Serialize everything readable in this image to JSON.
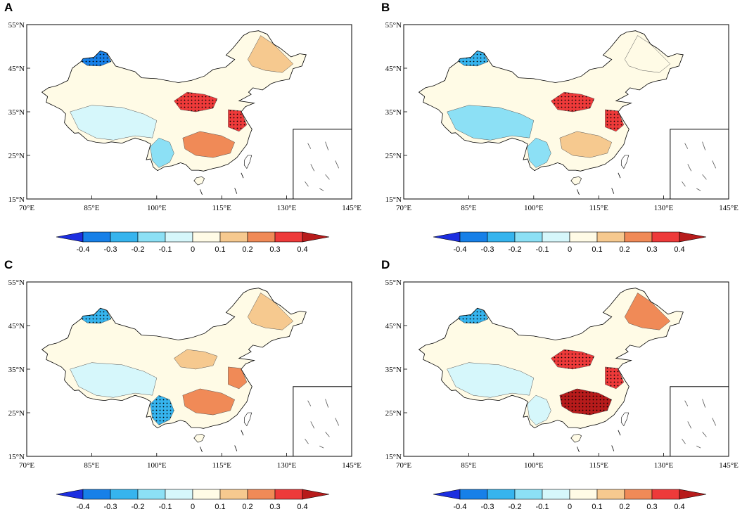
{
  "colors": {
    "bins": [
      "#1c2ee0",
      "#1780e8",
      "#36b4ee",
      "#8ce0f5",
      "#d6f7fb",
      "#fffbe6",
      "#f6c98f",
      "#f08a57",
      "#ee3a3a",
      "#b71b1b"
    ],
    "stipple": "#000000",
    "frame": "#000000",
    "coast": "#555555"
  },
  "axes": {
    "lat_labels": [
      "55°N",
      "45°N",
      "35°N",
      "25°N",
      "15°N"
    ],
    "lon_labels": [
      "70°E",
      "85°E",
      "100°E",
      "115°E",
      "130°E",
      "145°E"
    ]
  },
  "colorbar": {
    "labels": [
      "-0.4",
      "-0.3",
      "-0.2",
      "-0.1",
      "0",
      "0.1",
      "0.2",
      "0.3",
      "0.4"
    ]
  },
  "panels": [
    {
      "letter": "A",
      "anomaly": {
        "northwest": -0.4,
        "southwest": -0.2,
        "north_china": 0.3,
        "east_coast": 0.3,
        "south_china": 0.2,
        "northeast": 0.1,
        "tibet": -0.1
      }
    },
    {
      "letter": "B",
      "anomaly": {
        "northwest": -0.3,
        "southwest": -0.2,
        "north_china": 0.3,
        "east_coast": 0.3,
        "south_china": 0.1,
        "northeast": 0.0,
        "tibet": -0.2
      }
    },
    {
      "letter": "C",
      "anomaly": {
        "northwest": -0.3,
        "southwest": -0.3,
        "north_china": 0.1,
        "east_coast": 0.2,
        "south_china": 0.2,
        "northeast": 0.1,
        "tibet": -0.1
      }
    },
    {
      "letter": "D",
      "anomaly": {
        "northwest": -0.3,
        "southwest": -0.1,
        "north_china": 0.3,
        "east_coast": 0.3,
        "south_china": 0.4,
        "northeast": 0.2,
        "tibet": -0.1
      }
    }
  ]
}
